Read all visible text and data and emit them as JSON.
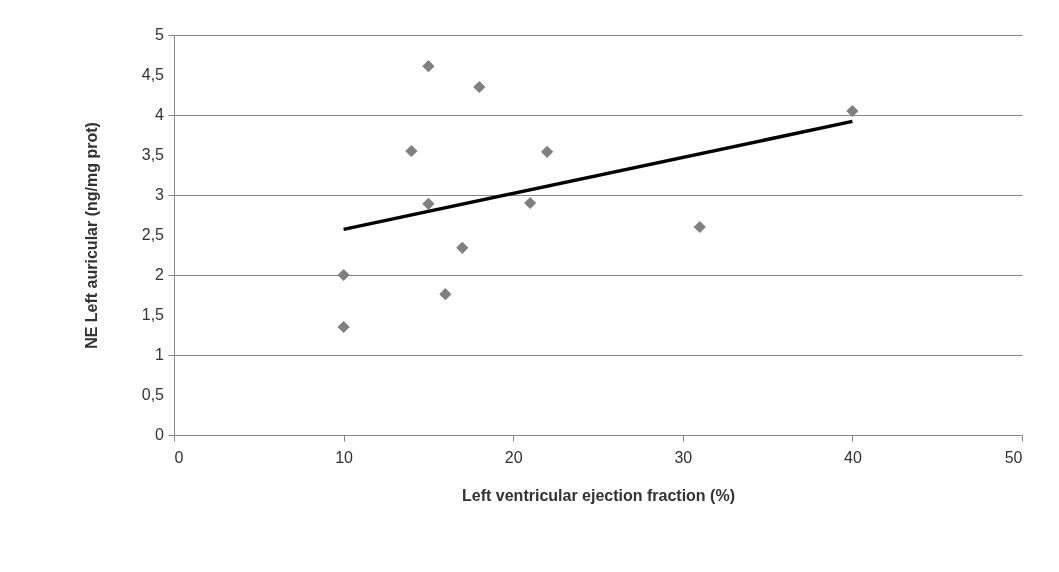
{
  "chart_data": {
    "type": "scatter",
    "xlabel": "Left ventricular ejection fraction (%)",
    "ylabel": "NE Left auricular (ng/mg prot)",
    "xlim": [
      0,
      50
    ],
    "xticks": [
      0,
      10,
      20,
      30,
      40,
      50
    ],
    "ylim": [
      0,
      5
    ],
    "yticks": [
      0,
      {
        "value": 0.5,
        "label": "0,5"
      },
      1,
      {
        "value": 1.5,
        "label": "1,5"
      },
      2,
      {
        "value": 2.5,
        "label": "2,5"
      },
      3,
      {
        "value": 3.5,
        "label": "3,5"
      },
      4,
      {
        "value": 4.5,
        "label": "4,5"
      },
      5
    ],
    "grid": "y",
    "marker": "diamond",
    "series": [
      {
        "color": "#808080",
        "x": [
          10,
          10,
          15,
          18,
          14,
          22,
          15,
          21,
          17,
          16,
          31,
          40
        ],
        "values": [
          1.35,
          2.0,
          4.61,
          4.35,
          3.55,
          3.54,
          2.89,
          2.9,
          2.34,
          1.76,
          2.6,
          4.05
        ]
      },
      {
        "type": "line",
        "color": "#000000",
        "line_style": "solid",
        "marker": "none",
        "x": [
          10,
          40
        ],
        "values": [
          2.57,
          3.92
        ]
      }
    ]
  }
}
